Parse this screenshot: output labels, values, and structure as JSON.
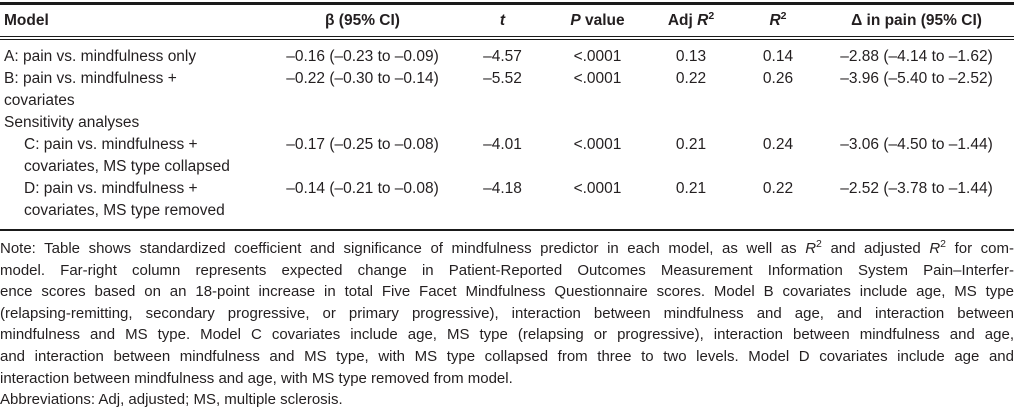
{
  "table": {
    "headers": {
      "model": "Model",
      "beta": "β (95% CI)",
      "t": "t",
      "p_italic": "P",
      "p_rest": " value",
      "adj_prefix": "Adj ",
      "r_letter": "R",
      "r_sup": "2",
      "delta": "Δ in pain (95% CI)"
    },
    "rows": [
      {
        "label_lines": [
          "A: pain vs. mindfulness only"
        ],
        "beta": "–0.16 (–0.23 to –0.09)",
        "t": "–4.57",
        "p": "<.0001",
        "adj_r2": "0.13",
        "r2": "0.14",
        "delta": "–2.88 (–4.14 to –1.62)"
      },
      {
        "label_lines": [
          "B: pain vs. mindfulness +",
          "covariates"
        ],
        "beta": "–0.22 (–0.30 to –0.14)",
        "t": "–5.52",
        "p": "<.0001",
        "adj_r2": "0.22",
        "r2": "0.26",
        "delta": "–3.96 (–5.40 to –2.52)"
      },
      {
        "label_lines": [
          "Sensitivity analyses"
        ]
      },
      {
        "label_lines": [
          "C: pain vs. mindfulness +",
          "covariates, MS type collapsed"
        ],
        "beta": "–0.17 (–0.25 to –0.08)",
        "t": "–4.01",
        "p": "<.0001",
        "adj_r2": "0.21",
        "r2": "0.24",
        "delta": "–3.06 (–4.50 to –1.44)"
      },
      {
        "label_lines": [
          "D: pain vs. mindfulness +",
          "covariates, MS type removed"
        ],
        "beta": "–0.14 (–0.21 to –0.08)",
        "t": "–4.18",
        "p": "<.0001",
        "adj_r2": "0.21",
        "r2": "0.22",
        "delta": "–2.52 (–3.78 to –1.44)"
      }
    ]
  },
  "notes": {
    "lines": [
      "Note: Table shows standardized coefficient and significance of mindfulness predictor in each model, as well as R² and adjusted R² for complete",
      "model. Far-right column represents expected change in Patient-Reported Outcomes Measurement Information System Pain–Interfer-",
      "ence scores based on an 18-point increase in total Five Facet Mindfulness Questionnaire scores. Model B covariates include age, MS type",
      "(relapsing-remitting, secondary progressive, or primary progressive), interaction between mindfulness and age, and interaction between",
      "mindfulness and MS type. Model C covariates include age, MS type (relapsing or progressive), interaction between mindfulness and age,",
      "and interaction between mindfulness and MS type, with MS type collapsed from three to two levels. Model D covariates include age and",
      "interaction between mindfulness and age, with MS type removed from model.",
      "Abbreviations: Adj, adjusted; MS, multiple sclerosis."
    ],
    "line1_pre": "Note: Table shows standardized coefficient and significance of mindfulness predictor in each model, as well as ",
    "line1_mid": " and adjusted ",
    "line1_post": " for com-"
  }
}
